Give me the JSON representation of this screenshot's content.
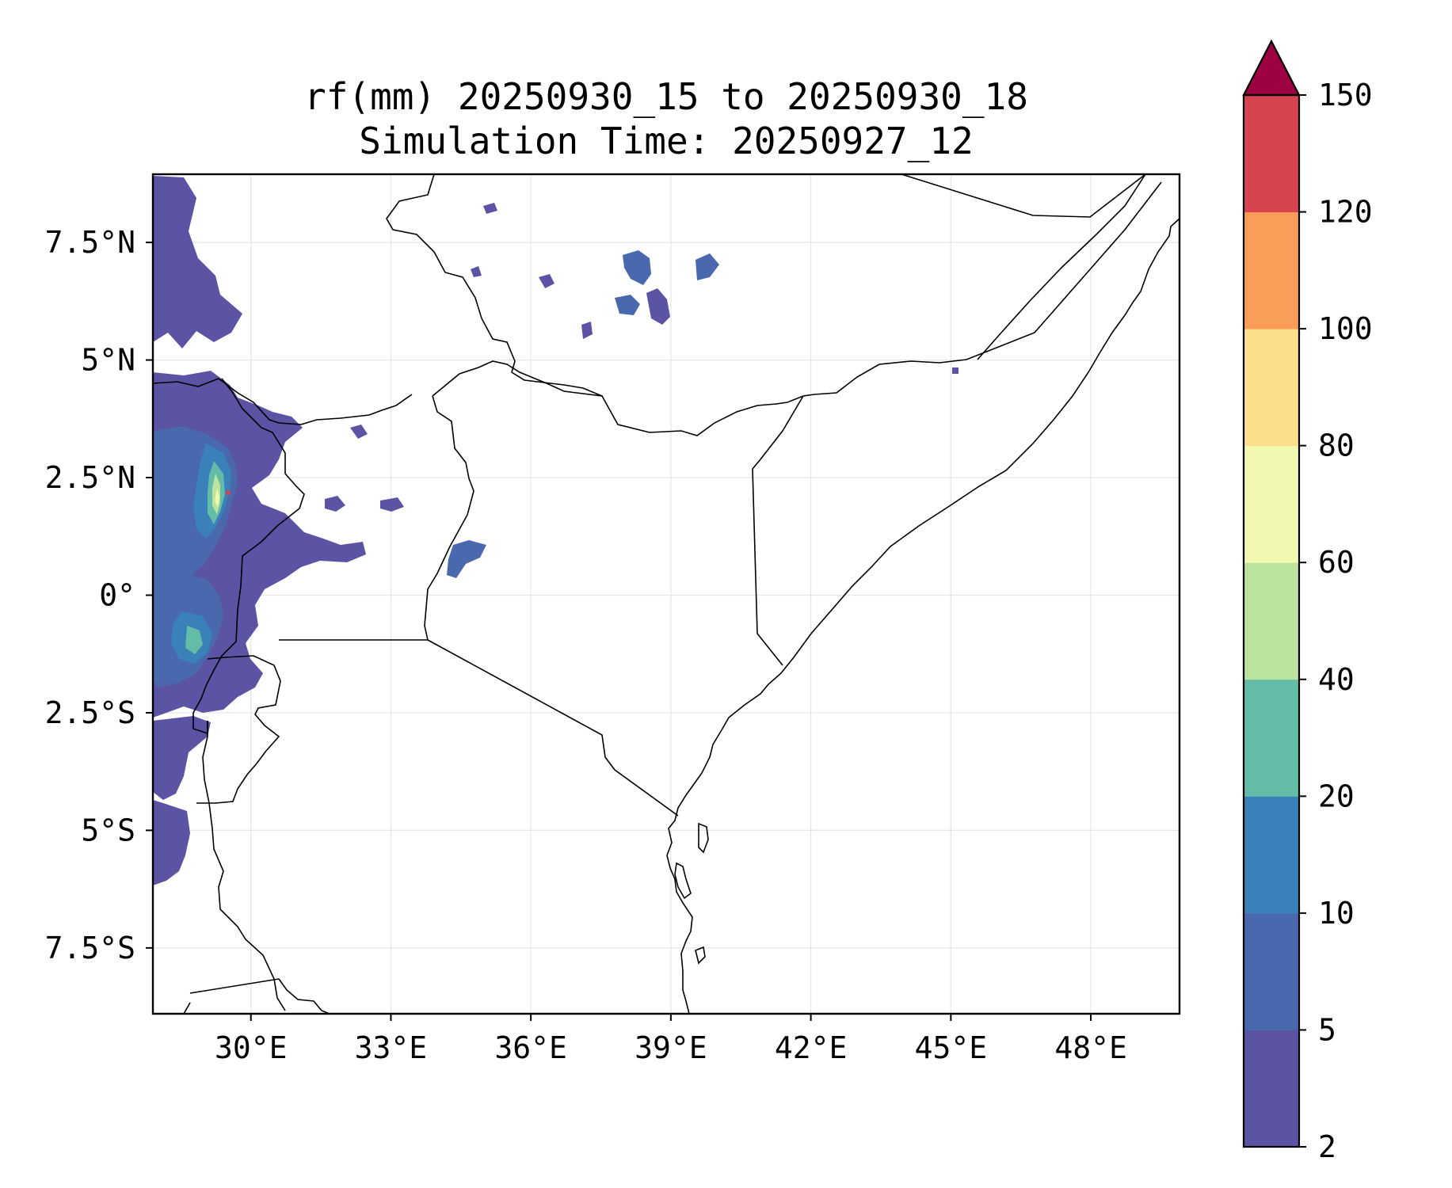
{
  "title": {
    "line1": "rf(mm) 20250930_15 to 20250930_18",
    "line2": "Simulation Time: 20250927_12"
  },
  "map": {
    "lon_range": [
      27.9,
      49.9
    ],
    "lat_range": [
      -8.9,
      8.95
    ],
    "lon_ticks": [
      {
        "value": 30,
        "label": "30°E"
      },
      {
        "value": 33,
        "label": "33°E"
      },
      {
        "value": 36,
        "label": "36°E"
      },
      {
        "value": 39,
        "label": "39°E"
      },
      {
        "value": 42,
        "label": "42°E"
      },
      {
        "value": 45,
        "label": "45°E"
      },
      {
        "value": 48,
        "label": "48°E"
      }
    ],
    "lat_ticks": [
      {
        "value": 7.5,
        "label": "7.5°N"
      },
      {
        "value": 5,
        "label": "5°N"
      },
      {
        "value": 2.5,
        "label": "2.5°N"
      },
      {
        "value": 0,
        "label": "0°"
      },
      {
        "value": -2.5,
        "label": "2.5°S"
      },
      {
        "value": -5,
        "label": "5°S"
      },
      {
        "value": -7.5,
        "label": "7.5°S"
      }
    ],
    "gridlines": true,
    "field": "rainfall accumulation (mm)"
  },
  "colorbar": {
    "levels": [
      "2",
      "5",
      "10",
      "20",
      "40",
      "60",
      "80",
      "100",
      "120",
      "150"
    ],
    "colors": [
      "#5b53a4",
      "#4a68ae",
      "#3a80b9",
      "#63bca8",
      "#bde3a0",
      "#f2f8b0",
      "#fcde8c",
      "#f99d59",
      "#d7434f",
      "#9e0142"
    ],
    "extend": "max",
    "orientation": "vertical",
    "position": "right"
  }
}
